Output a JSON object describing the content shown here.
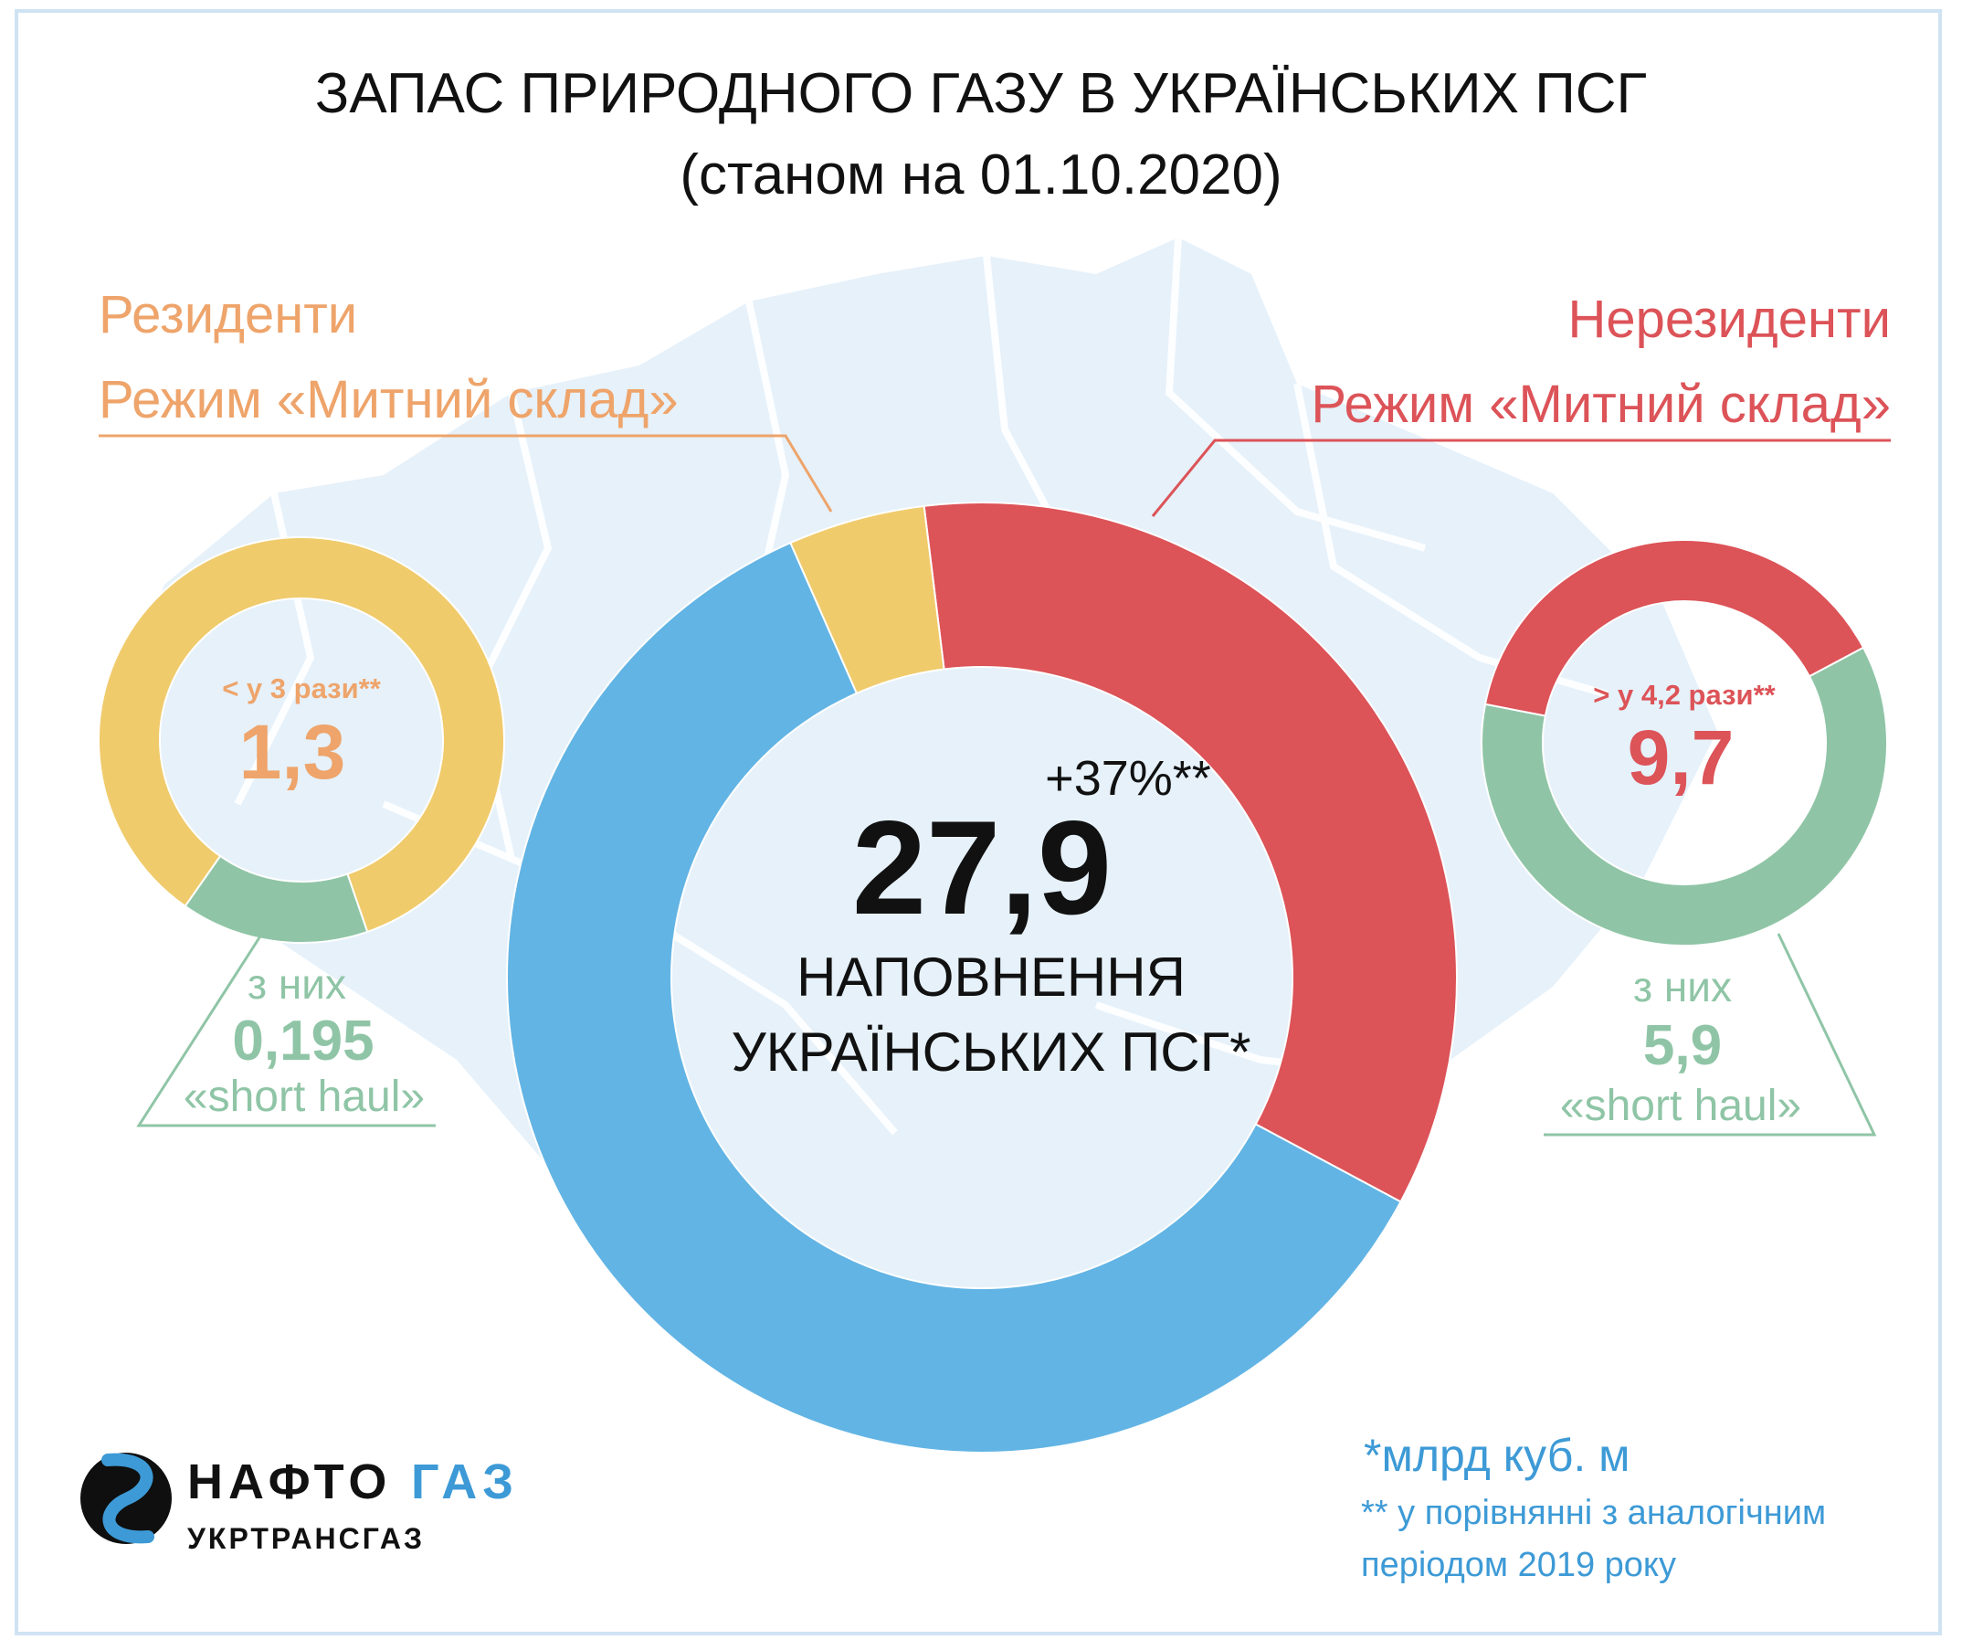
{
  "title": {
    "line1": "ЗАПАС ПРИРОДНОГО ГАЗУ В УКРАЇНСЬКИХ ПСГ",
    "line2": "(станом на 01.10.2020)"
  },
  "colors": {
    "blue": "#62b4e4",
    "yellow": "#f0cb6c",
    "red": "#dc5358",
    "green": "#8fc5a6",
    "orange_text": "#eea46a",
    "red_text": "#dc5358",
    "green_text": "#8fc5a6",
    "blue_text": "#3d9ad6",
    "map": "#e6f1fa"
  },
  "residents": {
    "line1": "Резиденти",
    "line2": "Режим «Митний склад»",
    "compare": "< у 3 рази**",
    "value": "1,3",
    "sub_label": "з них",
    "sub_value": "0,195",
    "sub_caption": "«short haul»"
  },
  "nonresidents": {
    "line1": "Нерезиденти",
    "line2": "Режим «Митний склад»",
    "compare": "> у 4,2 рази**",
    "value": "9,7",
    "sub_label": "з них",
    "sub_value": "5,9",
    "sub_caption": "«short haul»"
  },
  "center": {
    "change": "+37%**",
    "total": "27,9",
    "label1": "НАПОВНЕННЯ",
    "label2": "УКРАЇНСЬКИХ ПСГ*"
  },
  "footnotes": {
    "unit": "*млрд куб. м",
    "compare_line1": "** у порівнянні з аналогічним",
    "compare_line2": "періодом 2019 року"
  },
  "logo": {
    "brand_a": "НАФТО",
    "brand_b": "ГАЗ",
    "sub": "УКРТРАНСГАЗ"
  },
  "chart_data": [
    {
      "type": "pie",
      "title": "НАПОВНЕННЯ УКРАЇНСЬКИХ ПСГ*",
      "total": 27.9,
      "slices": [
        {
          "label": "Нерезиденти Режим «Митний склад»",
          "value": 9.7,
          "color": "#dc5358"
        },
        {
          "label": "",
          "value": 16.9,
          "color": "#62b4e4"
        },
        {
          "label": "Резиденти Режим «Митний склад»",
          "value": 1.3,
          "color": "#f0cb6c"
        }
      ]
    },
    {
      "type": "pie",
      "title": "Резиденти Режим «Митний склад»",
      "total": 1.3,
      "slices": [
        {
          "label": "«short haul»",
          "value": 0.195,
          "color": "#8fc5a6"
        },
        {
          "label": "",
          "value": 1.105,
          "color": "#f0cb6c"
        }
      ]
    },
    {
      "type": "pie",
      "title": "Нерезиденти Режим «Митний склад»",
      "total": 9.7,
      "slices": [
        {
          "label": "«short haul»",
          "value": 5.9,
          "color": "#8fc5a6"
        },
        {
          "label": "",
          "value": 3.8,
          "color": "#dc5358"
        }
      ]
    }
  ]
}
